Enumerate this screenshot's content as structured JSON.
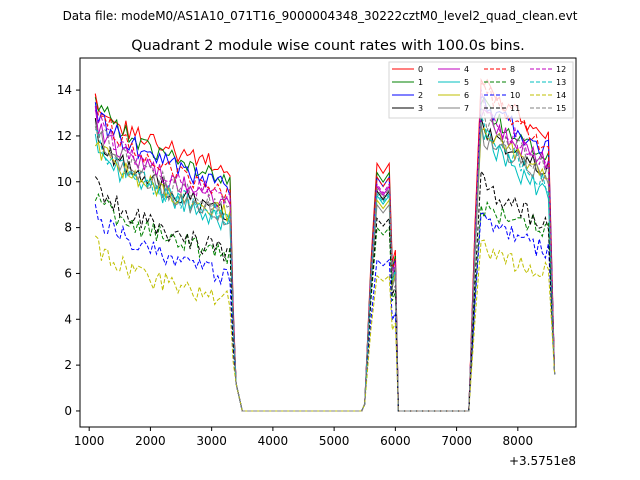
{
  "chart_data": {
    "type": "line",
    "suptitle": "Data file: modeM0/AS1A10_071T16_9000004348_30222cztM0_level2_quad_clean.evt",
    "title": "Quadrant 2 module wise count rates with 100.0s bins.",
    "xlabel": "",
    "ylabel": "",
    "x_offset_label": "+3.5751e8",
    "xlim": [
      850,
      8950
    ],
    "ylim": [
      -0.7,
      15.4
    ],
    "xticks": [
      1000,
      2000,
      3000,
      4000,
      5000,
      6000,
      7000,
      8000
    ],
    "yticks": [
      0,
      2,
      4,
      6,
      8,
      10,
      12,
      14
    ],
    "legend_position": "top-right",
    "segments": [
      {
        "start": 1100,
        "end": 3300
      },
      {
        "start": 5500,
        "end": 6000
      },
      {
        "start": 7200,
        "end": 8600
      }
    ],
    "gap_points": [
      3400,
      3500,
      5400,
      6100,
      7100
    ],
    "series": [
      {
        "name": "0",
        "color": "#ff0000",
        "dash": "solid",
        "level": 13.8,
        "end": 10.5,
        "mid": 10.8,
        "late": 14.8,
        "late_end": 11.8
      },
      {
        "name": "1",
        "color": "#008000",
        "dash": "solid",
        "level": 13.9,
        "end": 9.9,
        "mid": 10.4,
        "late": 13.6,
        "late_end": 11.2
      },
      {
        "name": "2",
        "color": "#0000ff",
        "dash": "solid",
        "level": 13.3,
        "end": 9.8,
        "mid": 10.2,
        "late": 13.8,
        "late_end": 11.4
      },
      {
        "name": "3",
        "color": "#000000",
        "dash": "solid",
        "level": 12.4,
        "end": 8.6,
        "mid": 9.6,
        "late": 12.6,
        "late_end": 10.5
      },
      {
        "name": "4",
        "color": "#bf00bf",
        "dash": "solid",
        "level": 13.0,
        "end": 9.0,
        "mid": 9.8,
        "late": 13.2,
        "late_end": 10.8
      },
      {
        "name": "5",
        "color": "#00bfbf",
        "dash": "solid",
        "level": 11.8,
        "end": 8.2,
        "mid": 9.4,
        "late": 12.4,
        "late_end": 9.4
      },
      {
        "name": "6",
        "color": "#bfbf00",
        "dash": "solid",
        "level": 12.0,
        "end": 8.5,
        "mid": 9.2,
        "late": 12.6,
        "late_end": 10.4
      },
      {
        "name": "7",
        "color": "#808080",
        "dash": "solid",
        "level": 12.6,
        "end": 8.3,
        "mid": 9.0,
        "late": 12.2,
        "late_end": 10.2
      },
      {
        "name": "8",
        "color": "#ff0000",
        "dash": "dashed",
        "level": 13.6,
        "end": 9.4,
        "mid": 10.2,
        "late": 14.6,
        "late_end": 11.4
      },
      {
        "name": "9",
        "color": "#008000",
        "dash": "dashed",
        "level": 9.5,
        "end": 6.8,
        "mid": 8.0,
        "late": 9.0,
        "late_end": 8.0
      },
      {
        "name": "10",
        "color": "#0000ff",
        "dash": "dashed",
        "level": 8.9,
        "end": 5.8,
        "mid": 6.6,
        "late": 8.6,
        "late_end": 7.0
      },
      {
        "name": "11",
        "color": "#000000",
        "dash": "dashed",
        "level": 10.2,
        "end": 6.9,
        "mid": 8.4,
        "late": 10.2,
        "late_end": 8.1
      },
      {
        "name": "12",
        "color": "#bf00bf",
        "dash": "dashed",
        "level": 13.2,
        "end": 9.2,
        "mid": 9.9,
        "late": 13.6,
        "late_end": 10.9
      },
      {
        "name": "13",
        "color": "#00bfbf",
        "dash": "dashed",
        "level": 12.2,
        "end": 8.4,
        "mid": 9.5,
        "late": 12.9,
        "late_end": 9.8
      },
      {
        "name": "14",
        "color": "#bfbf00",
        "dash": "dashed",
        "level": 7.4,
        "end": 4.8,
        "mid": 5.9,
        "late": 7.2,
        "late_end": 6.0
      },
      {
        "name": "15",
        "color": "#808080",
        "dash": "dashed",
        "level": 12.8,
        "end": 8.8,
        "mid": 9.7,
        "late": 13.0,
        "late_end": 10.6
      }
    ]
  }
}
